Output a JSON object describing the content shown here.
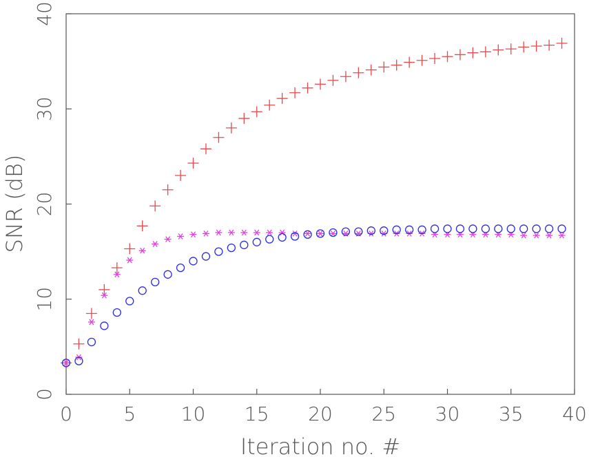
{
  "chart_data": {
    "type": "scatter",
    "xlabel": "Iteration no. #",
    "ylabel": "SNR (dB)",
    "xlim": [
      0,
      40
    ],
    "ylim": [
      0,
      40
    ],
    "xticks": [
      0,
      5,
      10,
      15,
      20,
      25,
      30,
      35,
      40
    ],
    "yticks": [
      0,
      10,
      20,
      30,
      40
    ],
    "grid": false,
    "x": [
      0,
      1,
      2,
      3,
      4,
      5,
      6,
      7,
      8,
      9,
      10,
      11,
      12,
      13,
      14,
      15,
      16,
      17,
      18,
      19,
      20,
      21,
      22,
      23,
      24,
      25,
      26,
      27,
      28,
      29,
      30,
      31,
      32,
      33,
      34,
      35,
      36,
      37,
      38,
      39
    ],
    "series": [
      {
        "marker": "plus",
        "color": "#e8474b",
        "values": [
          3.3,
          5.3,
          8.5,
          11.0,
          13.3,
          15.3,
          17.7,
          19.8,
          21.5,
          23.0,
          24.3,
          25.8,
          27.0,
          28.0,
          29.0,
          29.7,
          30.4,
          31.1,
          31.7,
          32.2,
          32.6,
          33.0,
          33.4,
          33.8,
          34.1,
          34.4,
          34.6,
          34.9,
          35.1,
          35.3,
          35.5,
          35.7,
          35.9,
          36.0,
          36.2,
          36.3,
          36.5,
          36.6,
          36.7,
          36.9
        ]
      },
      {
        "marker": "star",
        "color": "#e040e0",
        "values": [
          3.3,
          3.9,
          7.6,
          10.4,
          12.6,
          14.1,
          15.1,
          15.8,
          16.3,
          16.6,
          16.8,
          16.9,
          17.0,
          17.0,
          17.0,
          17.0,
          17.0,
          17.0,
          16.9,
          16.9,
          16.9,
          16.9,
          16.9,
          16.9,
          16.9,
          16.9,
          16.9,
          16.9,
          16.9,
          16.8,
          16.8,
          16.8,
          16.8,
          16.8,
          16.8,
          16.8,
          16.7,
          16.7,
          16.7,
          16.7
        ]
      },
      {
        "marker": "circle",
        "color": "#2a2ae8",
        "values": [
          3.3,
          3.5,
          5.5,
          7.2,
          8.6,
          9.8,
          10.9,
          11.8,
          12.6,
          13.3,
          14.0,
          14.5,
          15.0,
          15.4,
          15.7,
          16.0,
          16.3,
          16.5,
          16.6,
          16.8,
          16.9,
          17.0,
          17.1,
          17.1,
          17.2,
          17.2,
          17.3,
          17.3,
          17.3,
          17.4,
          17.4,
          17.4,
          17.4,
          17.4,
          17.4,
          17.4,
          17.4,
          17.4,
          17.4,
          17.4
        ]
      }
    ]
  }
}
